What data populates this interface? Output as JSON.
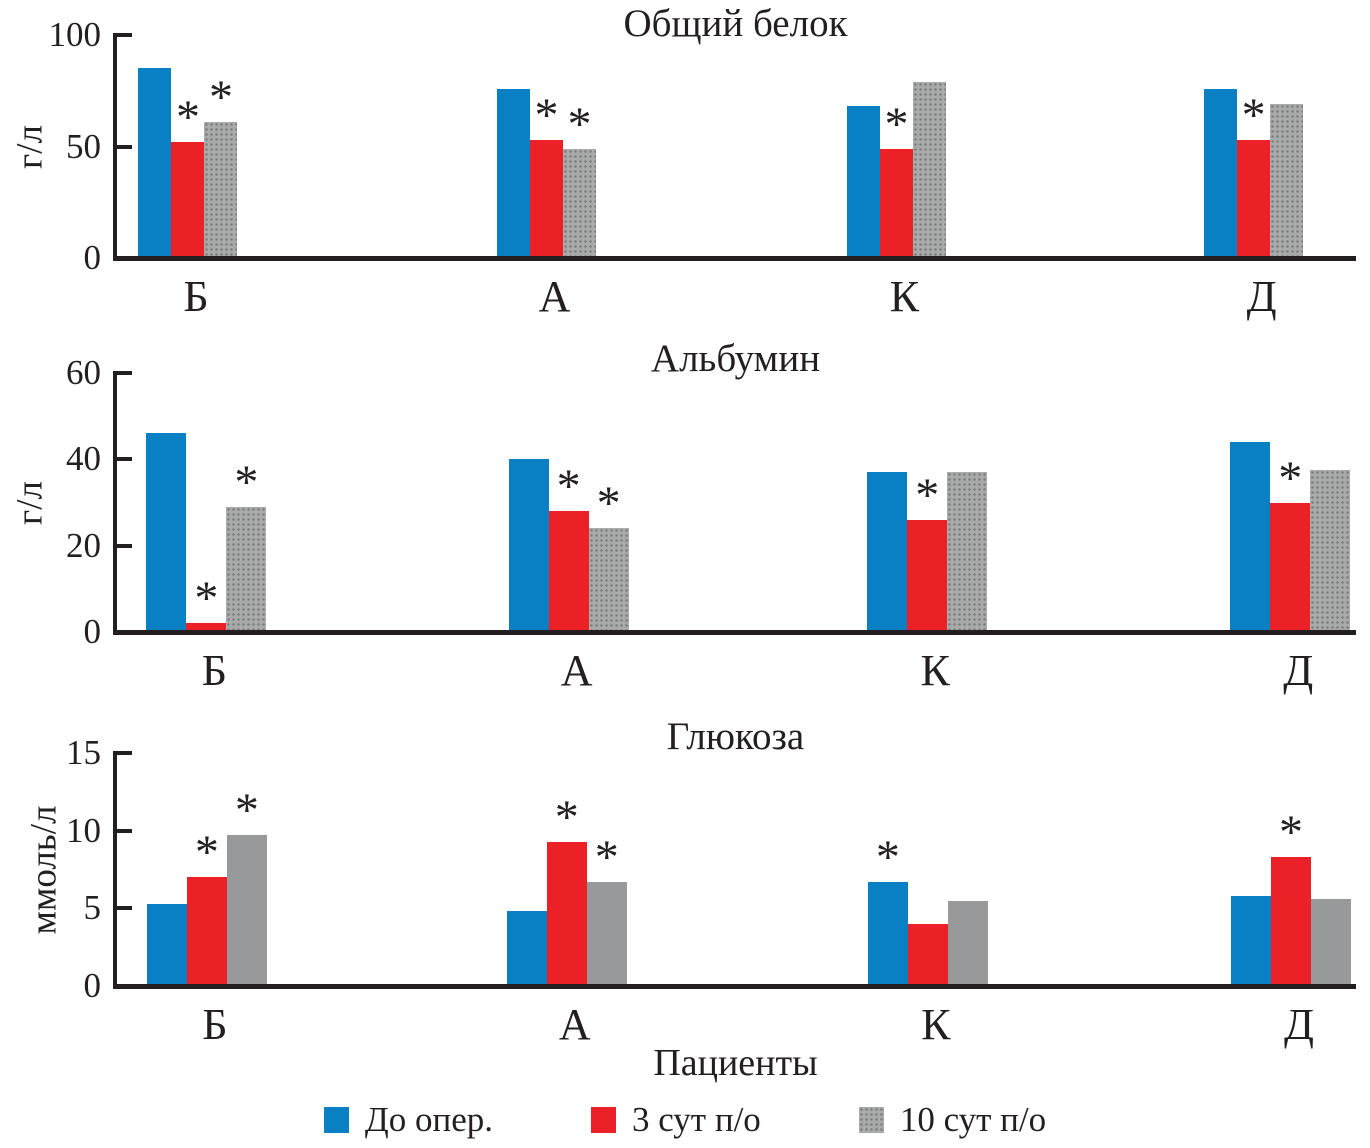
{
  "figure": {
    "xlabel": "Пациенты",
    "significance_marker": "*",
    "background": "#ffffff"
  },
  "colors": {
    "blue": "#0a80c4",
    "red": "#ec2127",
    "gray_solid": "#97999b",
    "gray_light": "#a9abab",
    "gray_dot": "#7f8181",
    "ink": "#231f20"
  },
  "legend": {
    "items": [
      {
        "label": "До опер.",
        "fill": "blue"
      },
      {
        "label": "3 сут п/о",
        "fill": "red"
      },
      {
        "label": "10 сут п/о",
        "fill": "gray-stipple"
      }
    ]
  },
  "chart_data": [
    {
      "type": "bar",
      "title": "Общий белок",
      "ylabel": "г/л",
      "ylim": [
        0,
        100
      ],
      "yticks": [
        0,
        50,
        100
      ],
      "grid": false,
      "categories": [
        "Б",
        "А",
        "К",
        "Д"
      ],
      "series": [
        {
          "name": "До опер.",
          "fill": "blue",
          "values": [
            85,
            76,
            68,
            76
          ],
          "significant": [
            false,
            false,
            false,
            false
          ]
        },
        {
          "name": "3 сут п/о",
          "fill": "red",
          "values": [
            52,
            53,
            49,
            53
          ],
          "significant": [
            true,
            true,
            true,
            true
          ]
        },
        {
          "name": "10 сут п/о",
          "fill": "gray-stipple",
          "values": [
            61,
            49,
            79,
            69
          ],
          "significant": [
            true,
            true,
            false,
            false
          ]
        }
      ]
    },
    {
      "type": "bar",
      "title": "Альбумин",
      "ylabel": "г/л",
      "ylim": [
        0,
        60
      ],
      "yticks": [
        0,
        20,
        40,
        60
      ],
      "grid": false,
      "categories": [
        "Б",
        "А",
        "К",
        "Д"
      ],
      "series": [
        {
          "name": "До опер.",
          "fill": "blue",
          "values": [
            46,
            40,
            37,
            44
          ],
          "significant": [
            false,
            false,
            false,
            false
          ]
        },
        {
          "name": "3 сут п/о",
          "fill": "red",
          "values": [
            2,
            28,
            26,
            30
          ],
          "significant": [
            true,
            true,
            true,
            true
          ]
        },
        {
          "name": "10 сут п/о",
          "fill": "gray-stipple",
          "values": [
            29,
            24,
            37,
            37.5
          ],
          "significant": [
            true,
            true,
            false,
            false
          ]
        }
      ]
    },
    {
      "type": "bar",
      "title": "Глюкоза",
      "ylabel": "ммоль/л",
      "ylim": [
        0,
        15
      ],
      "yticks": [
        0,
        5,
        10,
        15
      ],
      "grid": false,
      "categories": [
        "Б",
        "А",
        "К",
        "Д"
      ],
      "series": [
        {
          "name": "До опер.",
          "fill": "blue",
          "values": [
            5.3,
            4.8,
            6.7,
            5.8
          ],
          "significant": [
            false,
            false,
            true,
            false
          ]
        },
        {
          "name": "3 сут п/о",
          "fill": "red",
          "values": [
            7.0,
            9.3,
            4.0,
            8.3
          ],
          "significant": [
            true,
            true,
            false,
            true
          ]
        },
        {
          "name": "10 сут п/о",
          "fill": "gray-solid",
          "values": [
            9.7,
            6.7,
            5.5,
            5.6
          ],
          "significant": [
            true,
            true,
            false,
            false
          ]
        }
      ]
    }
  ]
}
